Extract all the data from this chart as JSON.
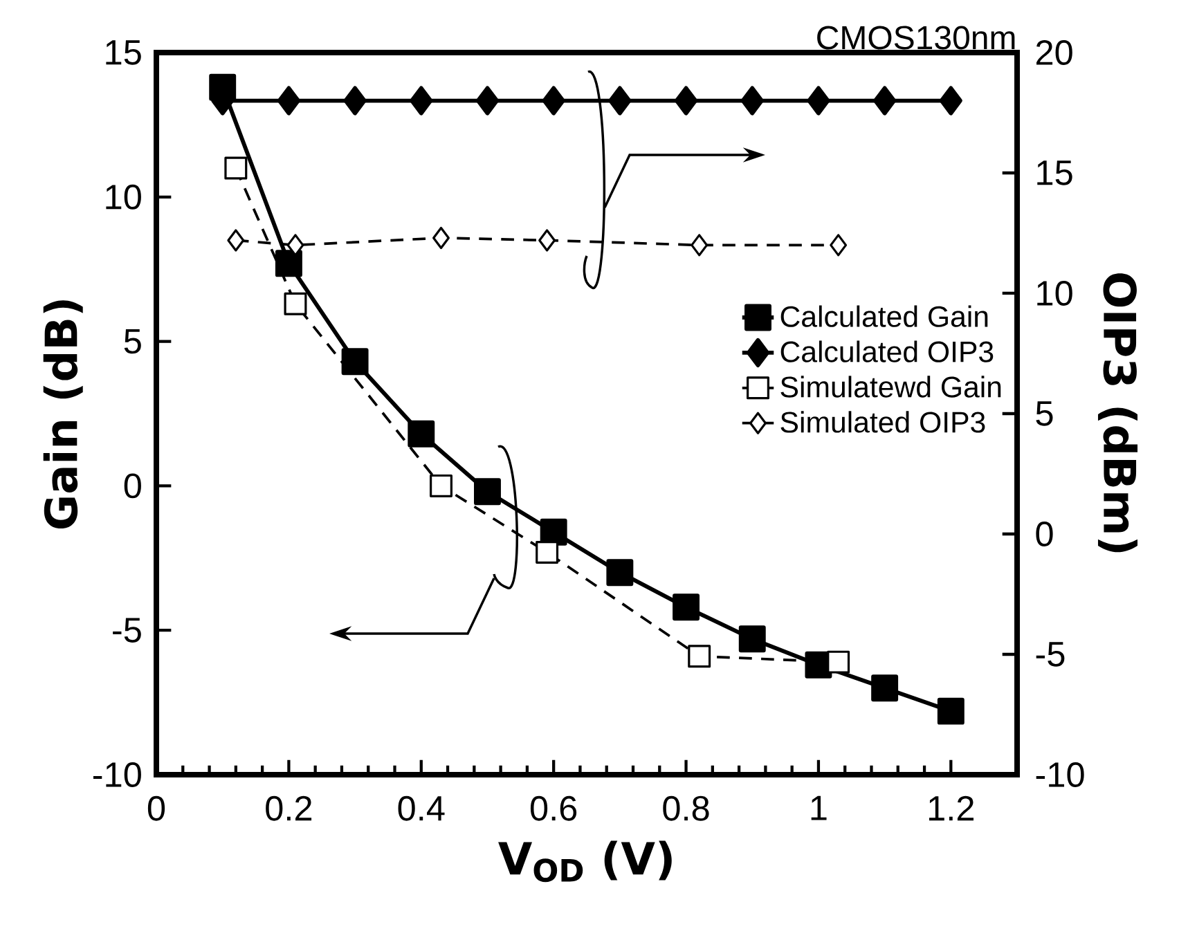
{
  "chart_data": {
    "type": "line",
    "xlabel": "V$_{OD}$ (V)",
    "ylabel": "Gain (dB)",
    "y2label": "OIP3 (dBm)",
    "annotations": [
      "CMOS130nm"
    ],
    "xlim": [
      0,
      1.3
    ],
    "xticks": [
      0,
      0.2,
      0.4,
      0.6,
      0.8,
      1,
      1.2
    ],
    "ylim": [
      -10,
      15
    ],
    "yticks": [
      -10,
      -5,
      0,
      5,
      10,
      15
    ],
    "y2lim": [
      -10,
      20
    ],
    "y2ticks": [
      -10,
      -5,
      0,
      5,
      10,
      15,
      20
    ],
    "legend": "right",
    "series": [
      {
        "name": "Calculated Gain",
        "color": "#000000",
        "marker": "square",
        "line_style": "solid",
        "x": [
          0.1,
          0.2,
          0.3,
          0.4,
          0.5,
          0.6,
          0.7,
          0.8,
          0.9,
          1.0,
          1.1,
          1.2
        ],
        "values": [
          13.8,
          7.7,
          4.3,
          1.8,
          -0.2,
          -1.6,
          -3.0,
          -4.2,
          -5.3,
          -6.2,
          -7.0,
          -7.8
        ]
      },
      {
        "name": "Calculated OIP3",
        "color": "#000000",
        "marker": "diamond",
        "line_style": "solid",
        "axis": "y2",
        "x": [
          0.1,
          0.2,
          0.3,
          0.4,
          0.5,
          0.6,
          0.7,
          0.8,
          0.9,
          1.0,
          1.1,
          1.2
        ],
        "values": [
          18,
          18,
          18,
          18,
          18,
          18,
          18,
          18,
          18,
          18,
          18,
          18
        ]
      },
      {
        "name": "Simulatewd Gain",
        "color": "#000000",
        "marker": "square",
        "line_style": "dashed",
        "x": [
          0.12,
          0.21,
          0.43,
          0.59,
          0.82,
          1.03
        ],
        "values": [
          11.0,
          6.3,
          0.0,
          -2.3,
          -5.9,
          -6.1
        ]
      },
      {
        "name": "Simulated OIP3",
        "color": "#000000",
        "marker": "diamond",
        "line_style": "dashed",
        "axis": "y2",
        "x": [
          0.12,
          0.21,
          0.43,
          0.59,
          0.82,
          1.03
        ],
        "values": [
          12.2,
          12.0,
          12.3,
          12.2,
          12.0,
          12.0
        ]
      }
    ]
  }
}
